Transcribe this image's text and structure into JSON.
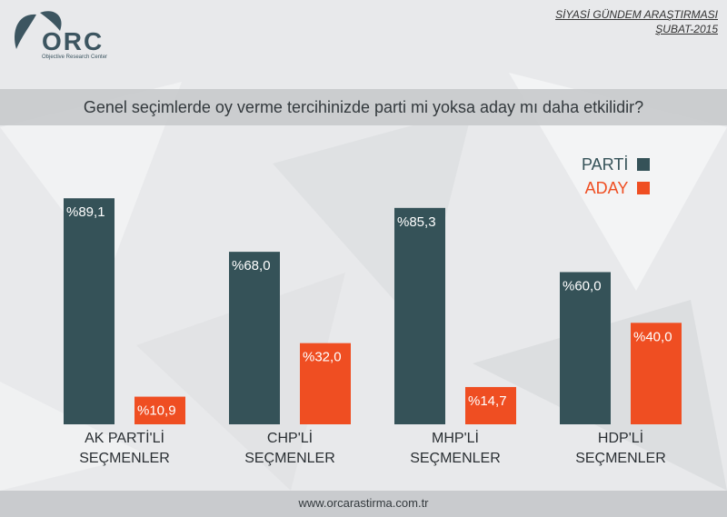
{
  "header": {
    "logo_text": "ORC",
    "logo_subtitle": "Objective Research Center",
    "survey_title": "SİYASİ GÜNDEM ARAŞTIRMASI",
    "survey_date": "ŞUBAT-2015"
  },
  "question": "Genel seçimlerde oy verme tercihinizde parti mi yoksa aday mı daha etkilidir?",
  "footer": "www.orcarastirma.com.tr",
  "colors": {
    "parti": "#355258",
    "aday": "#ef4e22"
  },
  "chart_data": {
    "type": "bar",
    "title": "Genel seçimlerde oy verme tercihinizde parti mi yoksa aday mı daha etkilidir?",
    "categories": [
      [
        "AK PARTİ'Lİ",
        "SEÇMENLER"
      ],
      [
        "CHP'Lİ",
        "SEÇMENLER"
      ],
      [
        "MHP'Lİ",
        "SEÇMENLER"
      ],
      [
        "HDP'Lİ",
        "SEÇMENLER"
      ]
    ],
    "series": [
      {
        "name": "PARTİ",
        "values": [
          89.1,
          68.0,
          85.3,
          60.0
        ],
        "labels": [
          "%89,1",
          "%68,0",
          "%85,3",
          "%60,0"
        ]
      },
      {
        "name": "ADAY",
        "values": [
          10.9,
          32.0,
          14.7,
          40.0
        ],
        "labels": [
          "%10,9",
          "%32,0",
          "%14,7",
          "%40,0"
        ]
      }
    ],
    "ylim": [
      0,
      100
    ],
    "legend_position": "top-right"
  }
}
